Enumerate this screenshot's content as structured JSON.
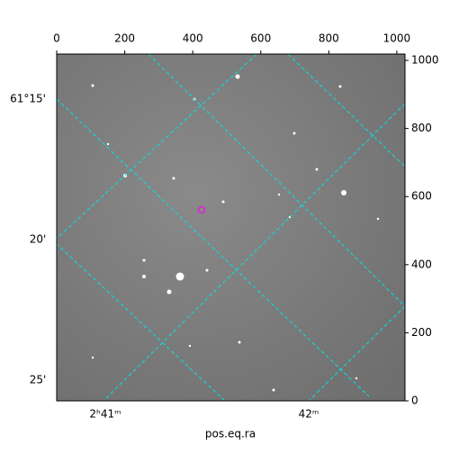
{
  "chart_data": {
    "type": "image",
    "xlabel": "pos.eq.ra",
    "xlim": [
      0,
      1024
    ],
    "ylim": [
      0,
      1024
    ],
    "xticks": [
      0,
      200,
      400,
      600,
      800,
      1000
    ],
    "yticks": [
      0,
      200,
      400,
      600,
      800,
      1000
    ],
    "world_yticks": [
      "61°15'",
      "20'",
      "25'"
    ],
    "world_xticks": [
      "2ʰ41ᵐ",
      "42ᵐ"
    ],
    "grid_color": "#00e5e5"
  }
}
